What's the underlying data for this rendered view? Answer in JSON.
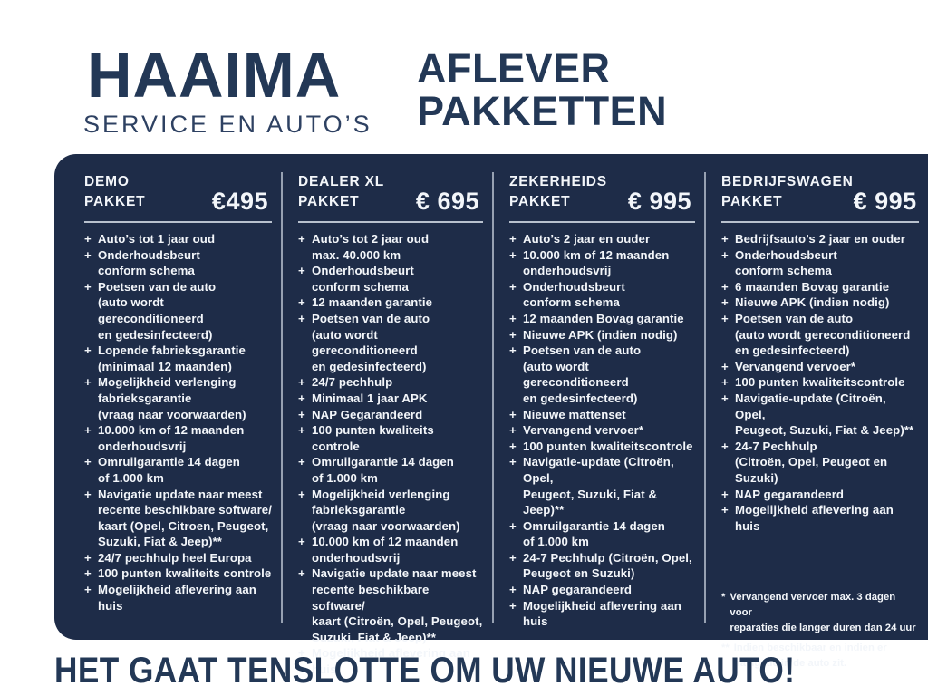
{
  "brand": {
    "name": "HAAIMA",
    "subtitle": "SERVICE EN AUTO’S"
  },
  "page_title": {
    "line1": "AFLEVER",
    "line2": "PAKKETTEN"
  },
  "colors": {
    "navy": "#233856",
    "panel": "#1e2c48",
    "panel_text": "#f3f6fa",
    "rule": "#c9d1dd",
    "divider": "#97a1b2"
  },
  "packages": [
    {
      "name_lines": [
        "DEMO",
        "PAKKET"
      ],
      "price": "€495",
      "items": [
        [
          "Auto’s tot 1 jaar oud"
        ],
        [
          "Onderhoudsbeurt",
          "conform schema"
        ],
        [
          "Poetsen van de auto",
          "(auto wordt gereconditioneerd",
          "en gedesinfecteerd)"
        ],
        [
          "Lopende fabrieksgarantie",
          "(minimaal 12 maanden)"
        ],
        [
          "Mogelijkheid verlenging",
          "fabrieksgarantie",
          "(vraag naar voorwaarden)"
        ],
        [
          "10.000 km of 12 maanden",
          "onderhoudsvrij"
        ],
        [
          "Omruilgarantie 14 dagen",
          "of 1.000 km"
        ],
        [
          "Navigatie update naar meest",
          "recente beschikbare software/",
          "kaart (Opel, Citroen,  Peugeot,",
          "Suzuki, Fiat & Jeep)**"
        ],
        [
          "24/7 pechhulp heel Europa"
        ],
        [
          "100 punten kwaliteits controle"
        ],
        [
          "Mogelijkheid aflevering aan huis"
        ]
      ]
    },
    {
      "name_lines": [
        "DEALER XL",
        "PAKKET"
      ],
      "price": "€ 695",
      "items": [
        [
          "Auto’s tot 2 jaar oud",
          "max. 40.000 km"
        ],
        [
          "Onderhoudsbeurt",
          "conform schema"
        ],
        [
          "12 maanden garantie"
        ],
        [
          "Poetsen van de auto",
          "(auto wordt gereconditioneerd",
          "en gedesinfecteerd)"
        ],
        [
          "24/7 pechhulp"
        ],
        [
          "Minimaal 1 jaar APK"
        ],
        [
          "NAP Gegarandeerd"
        ],
        [
          "100 punten kwaliteits controle"
        ],
        [
          "Omruilgarantie 14 dagen",
          "of 1.000 km"
        ],
        [
          "Mogelijkheid verlenging",
          "fabrieksgarantie",
          "(vraag naar voorwaarden)"
        ],
        [
          "10.000 km of 12 maanden",
          "onderhoudsvrij"
        ],
        [
          "Navigatie update naar meest",
          "recente beschikbare software/",
          "kaart (Citroën, Opel, Peugeot,",
          "Suzuki, Fiat & Jeep)**"
        ],
        [
          "Mogelijkheid aflevering aan huis"
        ]
      ]
    },
    {
      "name_lines": [
        "ZEKERHEIDS",
        "PAKKET"
      ],
      "price": "€ 995",
      "items": [
        [
          "Auto’s 2 jaar en ouder"
        ],
        [
          "10.000 km of 12 maanden",
          "onderhoudsvrij"
        ],
        [
          "Onderhoudsbeurt",
          "conform schema"
        ],
        [
          "12 maanden Bovag garantie"
        ],
        [
          "Nieuwe APK (indien nodig)"
        ],
        [
          "Poetsen van de auto",
          "(auto wordt gereconditioneerd",
          "en gedesinfecteerd)"
        ],
        [
          "Nieuwe mattenset"
        ],
        [
          "Vervangend vervoer*"
        ],
        [
          "100 punten kwaliteitscontrole"
        ],
        [
          "Navigatie-update (Citroën, Opel,",
          "Peugeot, Suzuki, Fiat & Jeep)**"
        ],
        [
          "Omruilgarantie 14 dagen",
          "of 1.000 km"
        ],
        [
          "24-7 Pechhulp (Citroën, Opel,",
          "Peugeot en Suzuki)"
        ],
        [
          "NAP gegarandeerd"
        ],
        [
          "Mogelijkheid aflevering aan huis"
        ]
      ]
    },
    {
      "name_lines": [
        "BEDRIJFSWAGEN",
        "PAKKET"
      ],
      "price": "€ 995",
      "items": [
        [
          "Bedrijfsauto’s 2 jaar en ouder"
        ],
        [
          "Onderhoudsbeurt",
          "conform schema"
        ],
        [
          "6 maanden Bovag garantie"
        ],
        [
          "Nieuwe APK (indien nodig)"
        ],
        [
          "Poetsen van de auto",
          "(auto wordt gereconditioneerd",
          "en gedesinfecteerd)"
        ],
        [
          "Vervangend vervoer*"
        ],
        [
          "100 punten kwaliteitscontrole"
        ],
        [
          "Navigatie-update (Citroën, Opel,",
          "Peugeot, Suzuki, Fiat & Jeep)**"
        ],
        [
          "24-7 Pechhulp",
          "(Citroën, Opel, Peugeot en Suzuki)"
        ],
        [
          "NAP gegarandeerd"
        ],
        [
          "Mogelijkheid aflevering aan huis"
        ]
      ]
    }
  ],
  "footnotes": [
    {
      "marker": "*",
      "lines": [
        "Vervangend vervoer max. 3 dagen voor",
        "reparaties die langer duren dan 24 uur"
      ]
    },
    {
      "marker": "**",
      "lines": [
        "Indien beschikbaar en indien er",
        "navigatie in de auto zit."
      ]
    }
  ],
  "tagline": "HET GAAT TENSLOTTE OM UW NIEUWE AUTO!"
}
